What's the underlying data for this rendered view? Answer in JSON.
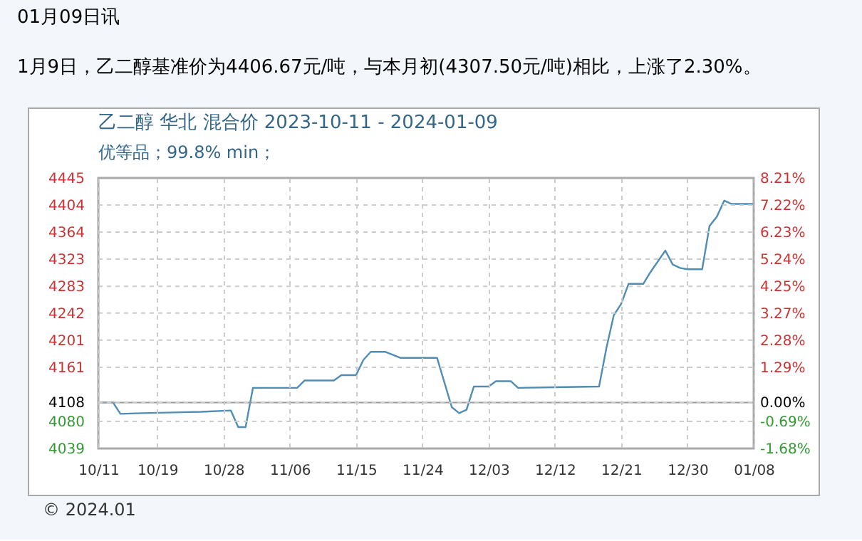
{
  "chart_data": {
    "type": "line",
    "title": "01月09日讯",
    "subtitle": "1月9日，乙二醇基准价为4406.67元/吨，与本月初(4307.50元/吨)相比，上涨了2.30%。",
    "annotations": [
      "乙二醇 华北 混合价 2023-10-11 - 2024-01-09",
      "优等品；99.8% min；",
      "© 2024.01"
    ],
    "x": [
      "2023-10-11",
      "2023-10-13",
      "2023-10-14",
      "2023-10-17",
      "2023-10-25",
      "2023-10-29",
      "2023-10-30",
      "2023-10-31",
      "2023-11-01",
      "2023-11-07",
      "2023-11-08",
      "2023-11-12",
      "2023-11-13",
      "2023-11-15",
      "2023-11-16",
      "2023-11-17",
      "2023-11-19",
      "2023-11-21",
      "2023-11-26",
      "2023-11-28",
      "2023-11-29",
      "2023-11-30",
      "2023-12-01",
      "2023-12-03",
      "2023-12-04",
      "2023-12-06",
      "2023-12-07",
      "2023-12-18",
      "2023-12-19",
      "2023-12-20",
      "2023-12-21",
      "2023-12-22",
      "2023-12-24",
      "2023-12-25",
      "2023-12-27",
      "2023-12-28",
      "2023-12-29",
      "2023-12-30",
      "2024-01-01",
      "2024-01-02",
      "2024-01-03",
      "2024-01-04",
      "2024-01-05",
      "2024-01-08"
    ],
    "series": [
      {
        "color": "#4f8db5",
        "values": [
          4108,
          4108,
          4091,
          4092,
          4094,
          4096,
          4071,
          4071,
          4130,
          4130,
          4141,
          4141,
          4149,
          4149,
          4172,
          4184,
          4184,
          4175,
          4175,
          4101,
          4092,
          4097,
          4132,
          4132,
          4140,
          4140,
          4130,
          4132,
          4190,
          4239,
          4256,
          4286,
          4286,
          4304,
          4336,
          4315,
          4310,
          4308,
          4308,
          4373,
          4387,
          4411,
          4406,
          4406
        ]
      }
    ],
    "xlim": [
      "2023-10-11",
      "2024-01-08"
    ],
    "xticks": [
      {
        "value": "2023-10-11",
        "label": "10/11"
      },
      {
        "value": "2023-10-19",
        "label": "10/19"
      },
      {
        "value": "2023-10-28",
        "label": "10/28"
      },
      {
        "value": "2023-11-06",
        "label": "11/06"
      },
      {
        "value": "2023-11-15",
        "label": "11/15"
      },
      {
        "value": "2023-11-24",
        "label": "11/24"
      },
      {
        "value": "2023-12-03",
        "label": "12/03"
      },
      {
        "value": "2023-12-12",
        "label": "12/12"
      },
      {
        "value": "2023-12-21",
        "label": "12/21"
      },
      {
        "value": "2023-12-30",
        "label": "12/30"
      },
      {
        "value": "2024-01-08",
        "label": "01/08"
      }
    ],
    "ylim": [
      4039,
      4445
    ],
    "yticks": [
      4039,
      4080,
      4108,
      4161,
      4201,
      4242,
      4283,
      4323,
      4364,
      4404,
      4445
    ],
    "y2lim": [
      -1.68,
      8.21
    ],
    "y2ticks": [
      {
        "value": -1.68,
        "label": "-1.68%"
      },
      {
        "value": -0.69,
        "label": "-0.69%"
      },
      {
        "value": 0,
        "label": "0.00%"
      },
      {
        "value": 1.29,
        "label": "1.29%"
      },
      {
        "value": 2.28,
        "label": "2.28%"
      },
      {
        "value": 3.27,
        "label": "3.27%"
      },
      {
        "value": 4.25,
        "label": "4.25%"
      },
      {
        "value": 5.24,
        "label": "5.24%"
      },
      {
        "value": 6.23,
        "label": "6.23%"
      },
      {
        "value": 7.22,
        "label": "7.22%"
      },
      {
        "value": 8.21,
        "label": "8.21%"
      }
    ],
    "ref_lines": [
      {
        "axis": "y",
        "value": 4108,
        "color": "#999999"
      }
    ],
    "grid": true,
    "marker": "none",
    "line_style": "solid"
  }
}
